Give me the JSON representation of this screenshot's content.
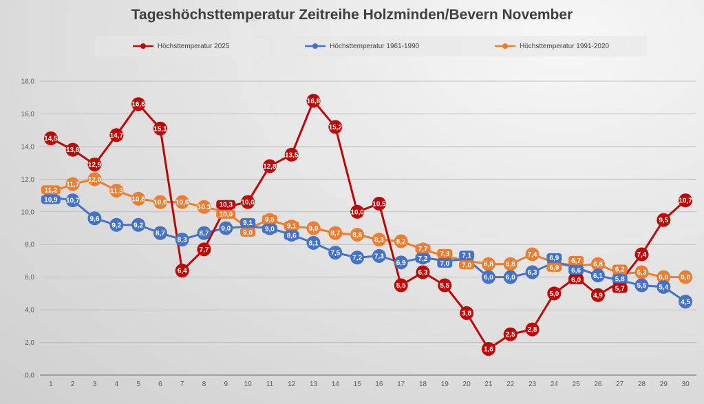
{
  "chart_data": {
    "type": "line",
    "title": "Tageshöchsttemperatur Zeitreihe Holzminden/Bevern November",
    "xlabel": "",
    "ylabel": "",
    "x": [
      1,
      2,
      3,
      4,
      5,
      6,
      7,
      8,
      9,
      10,
      11,
      12,
      13,
      14,
      15,
      16,
      17,
      18,
      19,
      20,
      21,
      22,
      23,
      24,
      25,
      26,
      27,
      28,
      29,
      30
    ],
    "ylim": [
      0,
      18
    ],
    "yticks": [
      "0,0",
      "2,0",
      "4,0",
      "6,0",
      "8,0",
      "10,0",
      "12,0",
      "14,0",
      "16,0",
      "18,0"
    ],
    "grid": true,
    "legend_position": "top",
    "series": [
      {
        "name": "Höchsttemperatur 2025",
        "color": "#c00000",
        "values": [
          14.5,
          13.8,
          12.9,
          14.7,
          16.6,
          15.1,
          6.4,
          7.7,
          10.3,
          10.6,
          12.8,
          13.5,
          16.8,
          15.2,
          10.0,
          10.5,
          5.5,
          6.3,
          5.5,
          3.8,
          1.6,
          2.5,
          2.8,
          5.0,
          6.0,
          4.9,
          5.7,
          7.4,
          9.5,
          10.7
        ]
      },
      {
        "name": "Höchsttemperatur 1961-1990",
        "color": "#4472c4",
        "values": [
          10.9,
          10.7,
          9.6,
          9.2,
          9.2,
          8.7,
          8.3,
          8.7,
          9.0,
          9.1,
          9.0,
          8.6,
          8.1,
          7.5,
          7.2,
          7.3,
          6.9,
          7.2,
          7.0,
          7.1,
          6.0,
          6.0,
          6.3,
          6.9,
          6.6,
          6.1,
          5.8,
          5.5,
          5.4,
          4.5
        ]
      },
      {
        "name": "Höchsttemperatur 1991-2020",
        "color": "#ed7d31",
        "values": [
          11.2,
          11.7,
          12.0,
          11.3,
          10.8,
          10.6,
          10.6,
          10.3,
          10.0,
          9.0,
          9.5,
          9.1,
          9.0,
          8.7,
          8.6,
          8.3,
          8.2,
          7.7,
          7.3,
          7.0,
          6.8,
          6.8,
          7.4,
          6.9,
          6.7,
          6.8,
          6.2,
          6.3,
          6.0,
          6.0
        ]
      }
    ]
  }
}
